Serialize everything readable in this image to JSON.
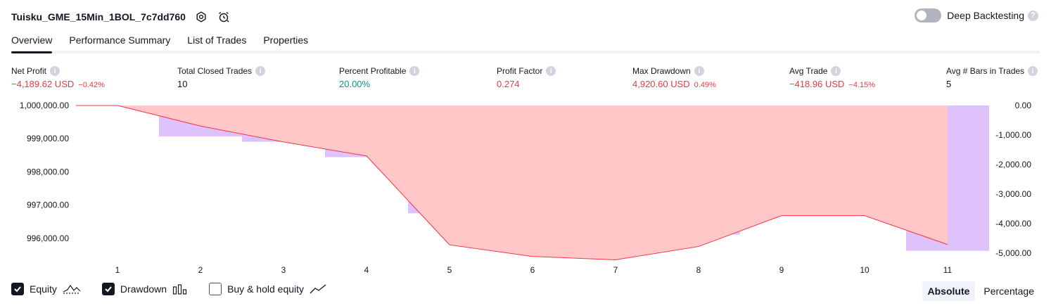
{
  "header": {
    "title": "Tuisku_GME_15Min_1BOL_7c7dd760",
    "icons": [
      "settings-icon",
      "alarm-add-icon"
    ]
  },
  "deep_backtesting": {
    "label": "Deep Backtesting",
    "enabled": false,
    "help_glyph": "?"
  },
  "tabs": [
    {
      "label": "Overview",
      "active": true
    },
    {
      "label": "Performance Summary",
      "active": false
    },
    {
      "label": "List of Trades",
      "active": false
    },
    {
      "label": "Properties",
      "active": false
    }
  ],
  "stats": {
    "net_profit": {
      "label": "Net Profit",
      "value": "−4,189.62 USD",
      "sub": "−0.42%"
    },
    "total_closed_trades": {
      "label": "Total Closed Trades",
      "value": "10"
    },
    "percent_profitable": {
      "label": "Percent Profitable",
      "value": "20.00%"
    },
    "profit_factor": {
      "label": "Profit Factor",
      "value": "0.274"
    },
    "max_drawdown": {
      "label": "Max Drawdown",
      "value": "4,920.60 USD",
      "sub": "0.49%"
    },
    "avg_trade": {
      "label": "Avg Trade",
      "value": "−418.96 USD",
      "sub": "−4.15%"
    },
    "avg_bars": {
      "label": "Avg # Bars in Trades",
      "value": "5"
    },
    "info_glyph": "i"
  },
  "colors": {
    "red": "#f23645",
    "green": "#089981",
    "bar_fill": "#dfc1fb",
    "drawdown_gradient_top": "#e2b4f0",
    "drawdown_gradient_bottom": "#f07aa9",
    "equity_line": "#f23645",
    "equity_fill": "#ffc7c7"
  },
  "chart_data": {
    "type": "area",
    "x": [
      1,
      2,
      3,
      4,
      5,
      6,
      7,
      8,
      9,
      10,
      11
    ],
    "equity": [
      1000000,
      999380,
      998900,
      998480,
      995800,
      995450,
      995350,
      995750,
      996680,
      996680,
      995810
    ],
    "drawdown": [
      0,
      -1050,
      -1230,
      -1750,
      -3650,
      -4150,
      -4250,
      -4370,
      -3650,
      -2650,
      -4920
    ],
    "left_axis": {
      "ticks": [
        1000000,
        999000,
        998000,
        997000,
        996000
      ],
      "tick_labels": [
        "1,000,000.00",
        "999,000.00",
        "998,000.00",
        "997,000.00",
        "996,000.00"
      ],
      "range": [
        995550,
        1000000
      ]
    },
    "right_axis": {
      "ticks": [
        0,
        -1000,
        -2000,
        -3000,
        -4000,
        -5000
      ],
      "tick_labels": [
        "0.00",
        "-1,000.00",
        "-2,000.00",
        "-3,000.00",
        "-4,000.00",
        "-5,000.00"
      ],
      "range": [
        -5000,
        0
      ]
    },
    "grid": false
  },
  "legend": [
    {
      "label": "Equity",
      "checked": true,
      "icon": "equity-line-icon"
    },
    {
      "label": "Drawdown",
      "checked": true,
      "icon": "bars-icon"
    },
    {
      "label": "Buy & hold equity",
      "checked": false,
      "icon": "trend-line-icon"
    }
  ],
  "view_mode": [
    {
      "label": "Absolute",
      "active": true
    },
    {
      "label": "Percentage",
      "active": false
    }
  ]
}
